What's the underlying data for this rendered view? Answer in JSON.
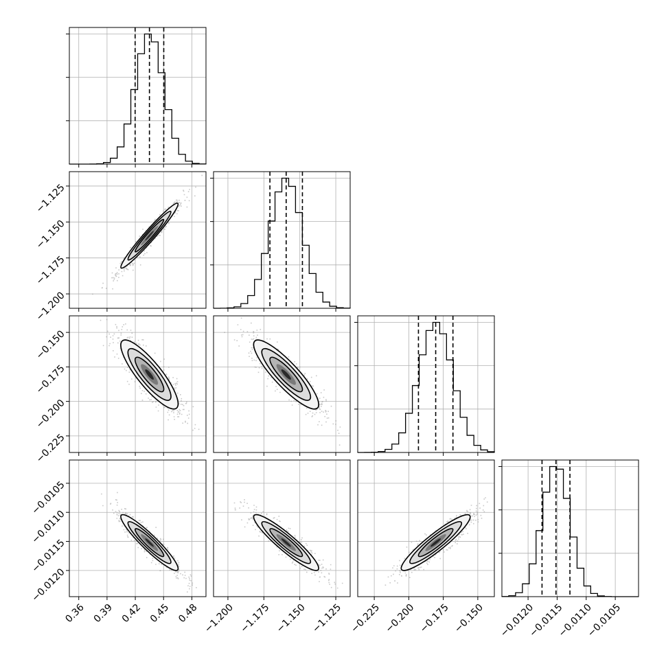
{
  "chart_data": {
    "type": "corner",
    "parameters": [
      {
        "ticks": [
          0.36,
          0.39,
          0.42,
          0.45,
          0.48
        ],
        "tick_labels": [
          "0.36",
          "0.39",
          "0.42",
          "0.45",
          "0.48"
        ],
        "range": [
          0.35,
          0.495
        ],
        "mean": 0.435,
        "std": 0.0152,
        "quantiles": [
          0.4198,
          0.435,
          0.4502
        ]
      },
      {
        "ticks": [
          -1.2,
          -1.175,
          -1.15,
          -1.125
        ],
        "tick_labels": [
          "−1.200",
          "−1.175",
          "−1.150",
          "−1.125"
        ],
        "range": [
          -1.21,
          -1.115
        ],
        "mean": -1.1595,
        "std": 0.0113,
        "quantiles": [
          -1.1708,
          -1.1595,
          -1.1482
        ]
      },
      {
        "ticks": [
          -0.225,
          -0.2,
          -0.175,
          -0.15
        ],
        "tick_labels": [
          "−0.225",
          "−0.200",
          "−0.175",
          "−0.150"
        ],
        "range": [
          -0.237,
          -0.138
        ],
        "mean": -0.1805,
        "std": 0.0125,
        "quantiles": [
          -0.193,
          -0.1805,
          -0.168
        ]
      },
      {
        "ticks": [
          -0.012,
          -0.0115,
          -0.011,
          -0.0105
        ],
        "tick_labels": [
          "−0.0120",
          "−0.0115",
          "−0.0110",
          "−0.0105"
        ],
        "range": [
          -0.01245,
          -0.0101
        ],
        "mean": -0.01152,
        "std": 0.00024,
        "quantiles": [
          -0.01176,
          -0.01152,
          -0.01128
        ]
      }
    ],
    "correlations": [
      [
        1.0,
        0.97,
        -0.85,
        -0.93
      ],
      [
        0.97,
        1.0,
        -0.87,
        -0.92
      ],
      [
        -0.85,
        -0.87,
        1.0,
        0.92
      ],
      [
        -0.93,
        -0.92,
        0.92,
        1.0
      ]
    ],
    "histogram_bins": 20,
    "quantile_levels": [
      0.16,
      0.5,
      0.84
    ],
    "grid": true
  }
}
